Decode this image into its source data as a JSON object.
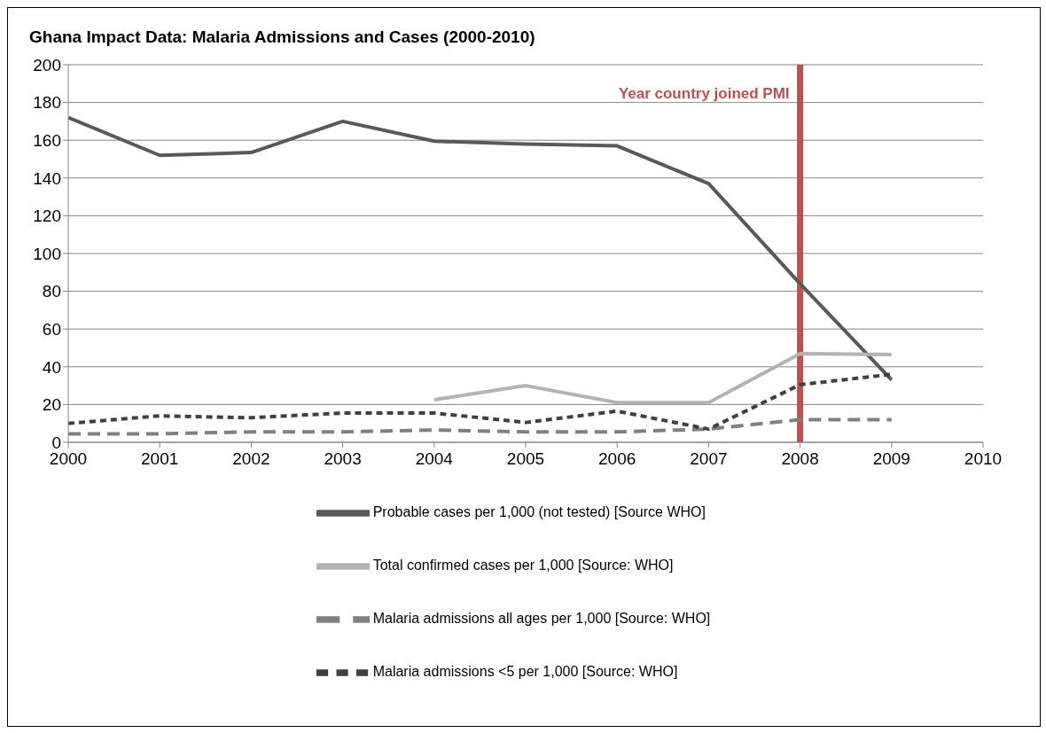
{
  "chart_data": {
    "type": "line",
    "title": "Ghana Impact Data: Malaria Admissions and Cases (2000-2010)",
    "x": [
      2000,
      2001,
      2002,
      2003,
      2004,
      2005,
      2006,
      2007,
      2008,
      2009
    ],
    "series": [
      {
        "name": "Probable cases per 1,000 (not tested) [Source WHO]",
        "color": "#595959",
        "line_style": "solid",
        "values": [
          172,
          152,
          153.5,
          170,
          159.5,
          158,
          157,
          137,
          84,
          33
        ]
      },
      {
        "name": "Total confirmed cases per 1,000 [Source: WHO]",
        "color": "#b3b3b3",
        "line_style": "solid",
        "values": [
          null,
          null,
          null,
          null,
          22.5,
          30,
          21,
          21,
          47,
          46.5
        ]
      },
      {
        "name": "Malaria admissions all ages per 1,000 [Source: WHO]",
        "color": "#808080",
        "line_style": "dashed",
        "values": [
          4.5,
          4.5,
          5.5,
          5.5,
          6.5,
          5.5,
          5.5,
          7,
          12,
          12
        ]
      },
      {
        "name": "Malaria admissions <5 per 1,000 [Source: WHO]",
        "color": "#404040",
        "line_style": "dotted",
        "values": [
          10,
          14,
          13,
          15.5,
          15.5,
          10.5,
          16.5,
          7,
          30.5,
          36
        ]
      }
    ],
    "xlim": [
      2000,
      2010
    ],
    "xticks": [
      2000,
      2001,
      2002,
      2003,
      2004,
      2005,
      2006,
      2007,
      2008,
      2009,
      2010
    ],
    "ylim": [
      0,
      200
    ],
    "yticks": [
      0,
      20,
      40,
      60,
      80,
      100,
      120,
      140,
      160,
      180,
      200
    ],
    "grid": "y",
    "legend": "bottom",
    "marker": "none",
    "ref_lines": [
      {
        "axis": "x",
        "value": 2008,
        "label": "Year country joined PMI",
        "color": "#c0504d"
      }
    ]
  }
}
